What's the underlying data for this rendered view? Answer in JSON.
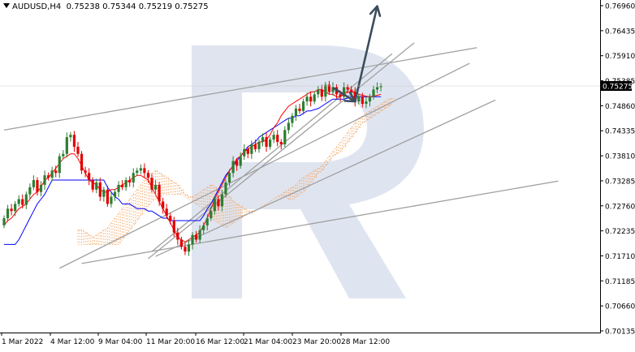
{
  "header": {
    "symbol": "AUDUSD,H4",
    "ohlc": "0.75238 0.75344 0.75219 0.75275"
  },
  "price_axis": {
    "labels": [
      "0.76960",
      "0.76435",
      "0.75910",
      "0.75385",
      "0.74860",
      "0.74335",
      "0.73810",
      "0.73285",
      "0.72760",
      "0.72235",
      "0.71710",
      "0.71185",
      "0.70660",
      "0.70135"
    ],
    "current_price": "0.75275",
    "current_price_color": "#ffffff"
  },
  "time_axis": {
    "labels": [
      "1 Mar 2022",
      "4 Mar 12:00",
      "9 Mar 04:00",
      "11 Mar 20:00",
      "16 Mar 12:00",
      "21 Mar 04:00",
      "23 Mar 20:00",
      "28 Mar 12:00"
    ]
  },
  "colors": {
    "bull_candle": "#2e7d32",
    "bear_candle": "#e10000",
    "tenkan": "#ff0000",
    "kijun": "#0000ff",
    "cloud": "#f4a460",
    "cloud_bear": "#b39ddb",
    "trendline": "#a0a0a0",
    "arrow": "#3d4d5c",
    "watermark": "#c9d3e6"
  },
  "chart_data": {
    "type": "candlestick",
    "title": "AUDUSD,H4",
    "ylim": [
      0.70135,
      0.7718
    ],
    "x_labels": [
      "1 Mar 2022",
      "4 Mar 12:00",
      "9 Mar 04:00",
      "11 Mar 20:00",
      "16 Mar 12:00",
      "21 Mar 04:00",
      "23 Mar 20:00",
      "28 Mar 12:00"
    ],
    "close": [
      0.725,
      0.727,
      0.7265,
      0.728,
      0.729,
      0.7278,
      0.73,
      0.7315,
      0.733,
      0.7305,
      0.732,
      0.734,
      0.7335,
      0.735,
      0.7345,
      0.738,
      0.7385,
      0.742,
      0.7425,
      0.74,
      0.7385,
      0.735,
      0.7345,
      0.733,
      0.731,
      0.7325,
      0.7295,
      0.731,
      0.728,
      0.7295,
      0.7305,
      0.732,
      0.7315,
      0.733,
      0.7325,
      0.7345,
      0.735,
      0.7355,
      0.7345,
      0.7335,
      0.731,
      0.732,
      0.7285,
      0.727,
      0.7255,
      0.7245,
      0.722,
      0.7205,
      0.719,
      0.718,
      0.7195,
      0.7215,
      0.7205,
      0.7225,
      0.7235,
      0.725,
      0.7265,
      0.729,
      0.7275,
      0.73,
      0.7325,
      0.7345,
      0.737,
      0.736,
      0.738,
      0.7395,
      0.7385,
      0.7405,
      0.7395,
      0.741,
      0.742,
      0.74,
      0.7415,
      0.7425,
      0.741,
      0.7405,
      0.7435,
      0.745,
      0.7465,
      0.748,
      0.7475,
      0.7495,
      0.7505,
      0.7495,
      0.751,
      0.752,
      0.7505,
      0.753,
      0.7515,
      0.7525,
      0.751,
      0.7505,
      0.7525,
      0.752,
      0.7515,
      0.7495,
      0.7505,
      0.749,
      0.7495,
      0.7505,
      0.752,
      0.7525,
      0.75275
    ],
    "open": [
      0.7235,
      0.725,
      0.727,
      0.7265,
      0.728,
      0.729,
      0.7278,
      0.73,
      0.7315,
      0.733,
      0.7305,
      0.732,
      0.734,
      0.7335,
      0.735,
      0.7345,
      0.738,
      0.7385,
      0.742,
      0.7425,
      0.74,
      0.7385,
      0.735,
      0.7345,
      0.733,
      0.731,
      0.7325,
      0.7295,
      0.731,
      0.728,
      0.7295,
      0.7305,
      0.732,
      0.7315,
      0.733,
      0.7325,
      0.7345,
      0.735,
      0.7355,
      0.7345,
      0.7335,
      0.731,
      0.732,
      0.7285,
      0.727,
      0.7255,
      0.7245,
      0.722,
      0.7205,
      0.719,
      0.718,
      0.7195,
      0.7215,
      0.7205,
      0.7225,
      0.7235,
      0.725,
      0.7265,
      0.729,
      0.7275,
      0.73,
      0.7325,
      0.7345,
      0.737,
      0.736,
      0.738,
      0.7395,
      0.7385,
      0.7405,
      0.7395,
      0.741,
      0.742,
      0.74,
      0.7415,
      0.7425,
      0.741,
      0.7405,
      0.7435,
      0.745,
      0.7465,
      0.748,
      0.7475,
      0.7495,
      0.7505,
      0.7495,
      0.751,
      0.752,
      0.7505,
      0.753,
      0.7515,
      0.7525,
      0.751,
      0.7505,
      0.7525,
      0.752,
      0.7515,
      0.7495,
      0.7505,
      0.749,
      0.7495,
      0.7505,
      0.752,
      0.7525
    ],
    "tenkan": [
      0.7235,
      0.7245,
      0.725,
      0.726,
      0.727,
      0.7275,
      0.728,
      0.729,
      0.73,
      0.7305,
      0.7315,
      0.733,
      0.7335,
      0.7345,
      0.7355,
      0.7365,
      0.7375,
      0.738,
      0.7385,
      0.7385,
      0.7375,
      0.736,
      0.7345,
      0.733,
      0.7325,
      0.732,
      0.731,
      0.7305,
      0.7305,
      0.731,
      0.731,
      0.7315,
      0.732,
      0.7325,
      0.733,
      0.7335,
      0.734,
      0.734,
      0.7335,
      0.733,
      0.7315,
      0.73,
      0.7285,
      0.727,
      0.7255,
      0.724,
      0.7225,
      0.721,
      0.7205,
      0.72,
      0.7205,
      0.721,
      0.7215,
      0.722,
      0.7235,
      0.725,
      0.727,
      0.729,
      0.7305,
      0.732,
      0.7335,
      0.735,
      0.736,
      0.7375,
      0.738,
      0.739,
      0.7395,
      0.74,
      0.7405,
      0.741,
      0.741,
      0.7415,
      0.7425,
      0.744,
      0.745,
      0.7465,
      0.7475,
      0.7485,
      0.749,
      0.7495,
      0.75,
      0.7505,
      0.751,
      0.7515,
      0.7515,
      0.752,
      0.752,
      0.7515,
      0.751,
      0.751,
      0.7505,
      0.7505,
      0.751,
      0.7515,
      0.7515,
      0.7515,
      0.751,
      0.7508,
      0.7506,
      0.7505,
      0.7506,
      0.7508,
      0.751
    ],
    "kijun": [
      0.7195,
      0.7195,
      0.7195,
      0.7195,
      0.7205,
      0.722,
      0.7235,
      0.725,
      0.7265,
      0.728,
      0.729,
      0.73,
      0.7315,
      0.733,
      0.733,
      0.733,
      0.733,
      0.733,
      0.733,
      0.733,
      0.733,
      0.733,
      0.733,
      0.733,
      0.733,
      0.733,
      0.733,
      0.733,
      0.7315,
      0.7305,
      0.7295,
      0.729,
      0.728,
      0.728,
      0.728,
      0.7275,
      0.727,
      0.727,
      0.727,
      0.7265,
      0.7265,
      0.726,
      0.7255,
      0.725,
      0.725,
      0.7245,
      0.7245,
      0.7245,
      0.7245,
      0.7245,
      0.7245,
      0.7245,
      0.7245,
      0.7245,
      0.7255,
      0.727,
      0.728,
      0.7295,
      0.731,
      0.7325,
      0.734,
      0.735,
      0.736,
      0.737,
      0.738,
      0.739,
      0.74,
      0.7405,
      0.741,
      0.742,
      0.7425,
      0.743,
      0.7435,
      0.744,
      0.7445,
      0.745,
      0.7455,
      0.746,
      0.746,
      0.7465,
      0.7465,
      0.747,
      0.7475,
      0.7475,
      0.7478,
      0.748,
      0.7485,
      0.749,
      0.7495,
      0.75,
      0.75,
      0.75,
      0.75,
      0.7502,
      0.7505,
      0.7505,
      0.7505,
      0.7505,
      0.7505,
      0.7505,
      0.7505,
      0.7505,
      0.7505
    ],
    "cloud": {
      "span_a": [
        0.7225,
        0.7225,
        0.722,
        0.7215,
        0.721,
        0.7215,
        0.722,
        0.7225,
        0.723,
        0.724,
        0.725,
        0.726,
        0.727,
        0.728,
        0.729,
        0.73,
        0.731,
        0.732,
        0.733,
        0.734,
        0.7345,
        0.735,
        0.7345,
        0.734,
        0.7335,
        0.733,
        0.7325,
        0.732,
        0.731,
        0.73,
        0.7295,
        0.7295,
        0.73,
        0.7305,
        0.731,
        0.7315,
        0.732,
        0.7315,
        0.731,
        0.7305,
        0.73,
        0.7295,
        0.7285,
        0.728,
        0.7275,
        0.727,
        0.7265,
        0.7265,
        0.7265,
        0.727,
        0.7275,
        0.728,
        0.7285,
        0.729,
        0.7295,
        0.73,
        0.7305,
        0.731,
        0.7315,
        0.732,
        0.733,
        0.7335,
        0.734,
        0.7345,
        0.735,
        0.7355,
        0.736,
        0.737,
        0.738,
        0.739,
        0.74,
        0.741,
        0.742,
        0.743,
        0.744,
        0.745,
        0.746,
        0.7465,
        0.747,
        0.7475,
        0.748,
        0.7485,
        0.749,
        0.7495,
        0.75,
        0.7502
      ],
      "span_b": [
        0.7195,
        0.7195,
        0.7195,
        0.7195,
        0.7195,
        0.7195,
        0.7195,
        0.7195,
        0.7195,
        0.7195,
        0.7195,
        0.7195,
        0.7205,
        0.7215,
        0.7225,
        0.7235,
        0.7245,
        0.7255,
        0.7265,
        0.7275,
        0.7285,
        0.729,
        0.7295,
        0.73,
        0.73,
        0.73,
        0.73,
        0.73,
        0.73,
        0.7295,
        0.729,
        0.7285,
        0.728,
        0.7275,
        0.727,
        0.726,
        0.725,
        0.7245,
        0.724,
        0.7235,
        0.723,
        0.7235,
        0.724,
        0.7245,
        0.725,
        0.7255,
        0.726,
        0.726,
        0.7265,
        0.727,
        0.7275,
        0.728,
        0.7285,
        0.729,
        0.7295,
        0.7295,
        0.7295,
        0.729,
        0.729,
        0.7295,
        0.73,
        0.7305,
        0.7315,
        0.7325,
        0.7335,
        0.7345,
        0.735,
        0.736,
        0.737,
        0.738,
        0.7385,
        0.739,
        0.74,
        0.741,
        0.742,
        0.743,
        0.744,
        0.745,
        0.7455,
        0.746,
        0.7465,
        0.747,
        0.7475,
        0.748,
        0.7485,
        0.749
      ]
    },
    "trendlines": [
      {
        "from": [
          0,
          0.7435
        ],
        "to": [
          128,
          0.7608
        ]
      },
      {
        "from": [
          15,
          0.7145
        ],
        "to": [
          126,
          0.7575
        ]
      },
      {
        "from": [
          39,
          0.7165
        ],
        "to": [
          111,
          0.7618
        ]
      },
      {
        "from": [
          40,
          0.718
        ],
        "to": [
          105,
          0.7595
        ]
      },
      {
        "from": [
          41,
          0.717
        ],
        "to": [
          133,
          0.7498
        ]
      },
      {
        "from": [
          21,
          0.7155
        ],
        "to": [
          150,
          0.7328
        ]
      }
    ],
    "forecast_path": [
      [
        89,
        0.7524
      ],
      [
        95,
        0.7495
      ],
      [
        101,
        0.7695
      ]
    ]
  }
}
